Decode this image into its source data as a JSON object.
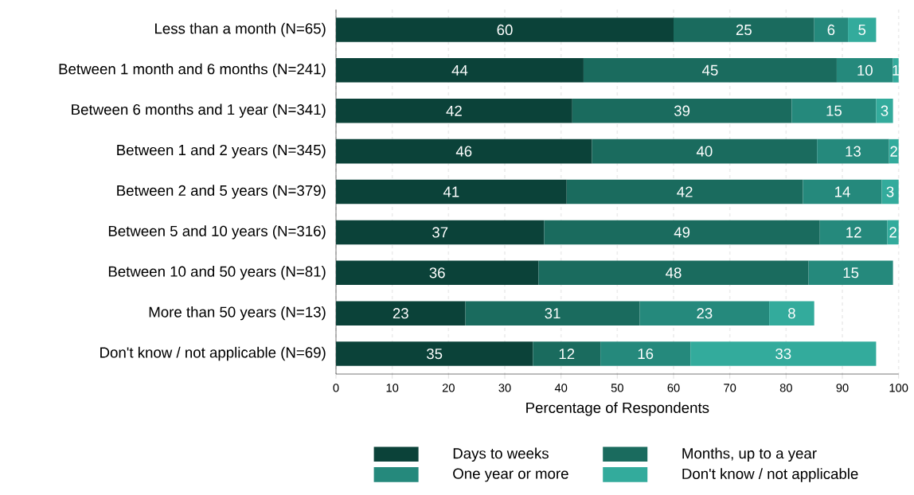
{
  "chart_data": {
    "type": "bar",
    "orientation": "horizontal",
    "stacked": true,
    "categories": [
      "Less than a month (N=65)",
      "Between 1 month and 6 months (N=241)",
      "Between 6 months and 1 year (N=341)",
      "Between 1 and 2 years (N=345)",
      "Between 2 and 5 years (N=379)",
      "Between 5 and 10 years (N=316)",
      "Between 10 and 50 years (N=81)",
      "More than 50 years (N=13)",
      "Don't know / not applicable (N=69)"
    ],
    "series": [
      {
        "name": "Days to weeks",
        "color": "#0b4239",
        "values": [
          60,
          44,
          42,
          45.5,
          41,
          37,
          36,
          23,
          35
        ],
        "value_labels": [
          "60",
          "44",
          "42",
          "46",
          "41",
          "37",
          "36",
          "23",
          "35"
        ]
      },
      {
        "name": "Months, up to a year",
        "color": "#1a6b5e",
        "values": [
          25,
          45,
          39,
          40,
          42,
          49,
          48,
          31,
          12
        ],
        "value_labels": [
          "25",
          "45",
          "39",
          "40",
          "42",
          "49",
          "48",
          "31",
          "12"
        ]
      },
      {
        "name": "One year or more",
        "color": "#25897c",
        "values": [
          6,
          10,
          15,
          12.8,
          14,
          12,
          15,
          23,
          16
        ],
        "value_labels": [
          "6",
          "10",
          "15",
          "13",
          "14",
          "12",
          "15",
          "23",
          "16"
        ]
      },
      {
        "name": "Don't know / not applicable",
        "color": "#33ab9c",
        "values": [
          5,
          1,
          3,
          1.7,
          3,
          2,
          null,
          8,
          33
        ],
        "value_labels": [
          "5",
          "1",
          "3",
          "2",
          "3",
          "2",
          null,
          "8",
          "33"
        ]
      }
    ],
    "xlabel": "Percentage of Respondents",
    "xlim": [
      0,
      100
    ],
    "xticks": [
      0,
      10,
      20,
      30,
      40,
      50,
      60,
      70,
      80,
      90,
      100
    ],
    "grid": "x",
    "legend": "bottom"
  }
}
